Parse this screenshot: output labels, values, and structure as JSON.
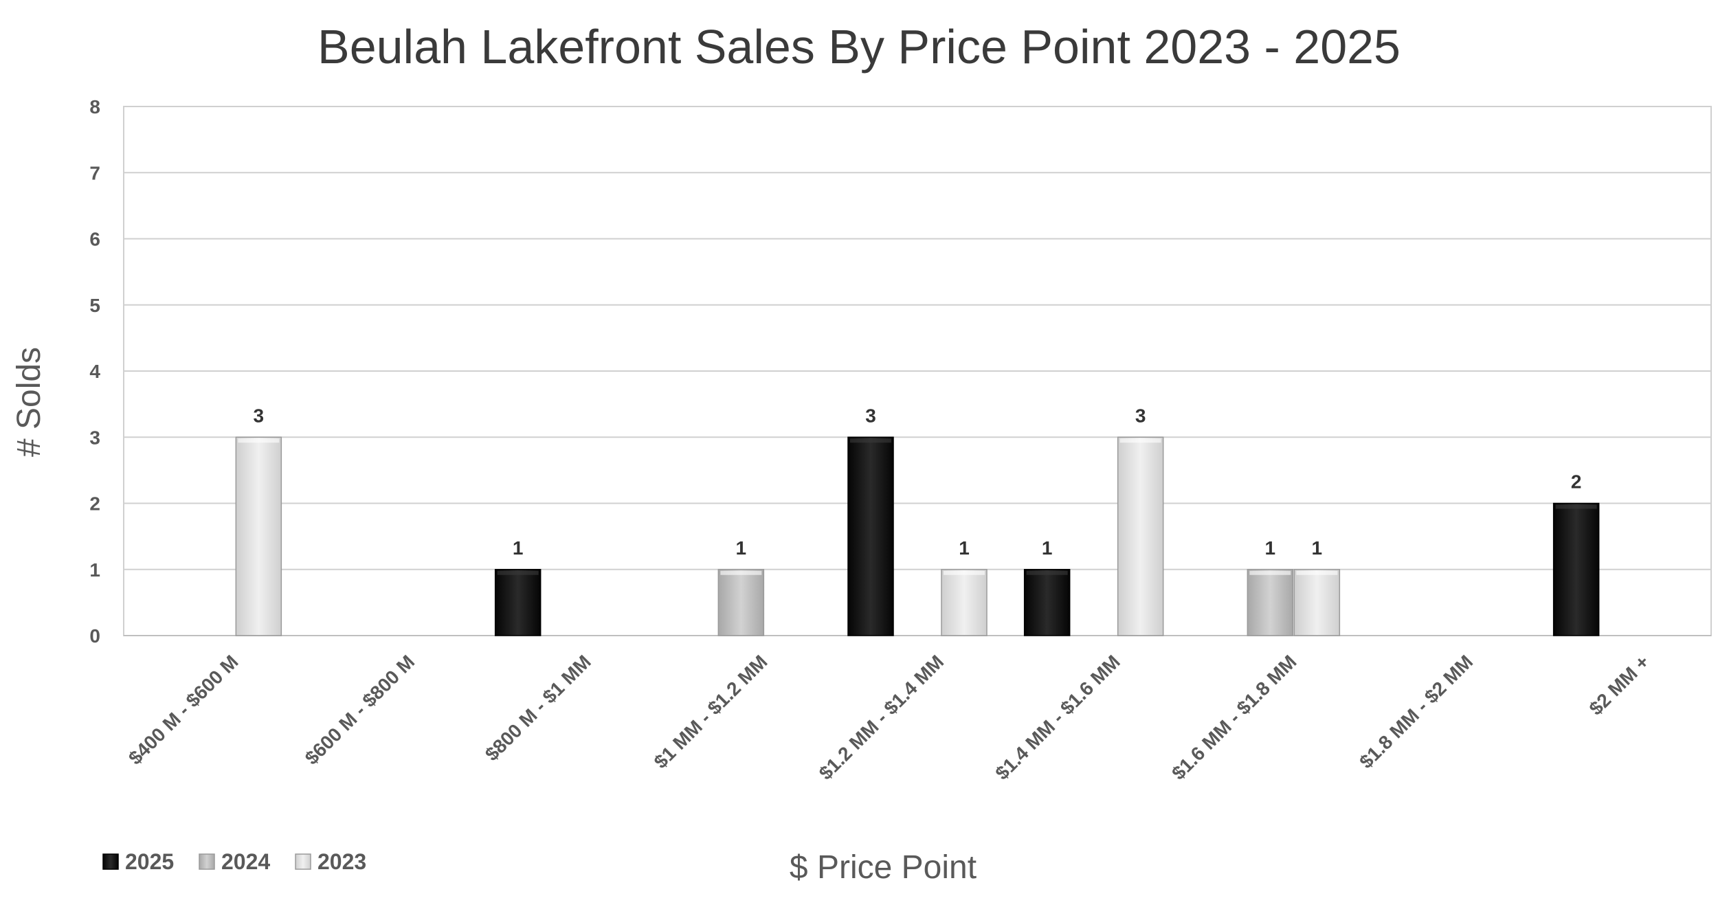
{
  "colors": {
    "2025": "#141414",
    "2024": "#c4c4c4",
    "2023": "#e6e6e6",
    "grid": "#d0d0d0",
    "axis": "#bfbfbf",
    "text": "#595959"
  },
  "chart_data": {
    "type": "bar",
    "title": "Beulah Lakefront Sales By Price Point 2023 - 2025",
    "xlabel": "$ Price Point",
    "ylabel": "# Solds",
    "ylim": [
      0,
      8
    ],
    "yticks": [
      0,
      1,
      2,
      3,
      4,
      5,
      6,
      7,
      8
    ],
    "grid": true,
    "legend_position": "bottom-left",
    "categories": [
      "$400 M - $600 M",
      "$600 M - $800 M",
      "$800 M - $1 MM",
      "$1 MM - $1.2 MM",
      "$1.2 MM - $1.4 MM",
      "$1.4 MM - $1.6 MM",
      "$1.6 MM - $1.8 MM",
      "$1.8 MM - $2 MM",
      "$2 MM +"
    ],
    "series": [
      {
        "name": "2025",
        "values": [
          0,
          0,
          1,
          0,
          3,
          1,
          0,
          0,
          2
        ]
      },
      {
        "name": "2024",
        "values": [
          0,
          0,
          0,
          1,
          0,
          0,
          1,
          0,
          0
        ]
      },
      {
        "name": "2023",
        "values": [
          3,
          0,
          0,
          0,
          1,
          3,
          1,
          0,
          0
        ]
      }
    ]
  }
}
